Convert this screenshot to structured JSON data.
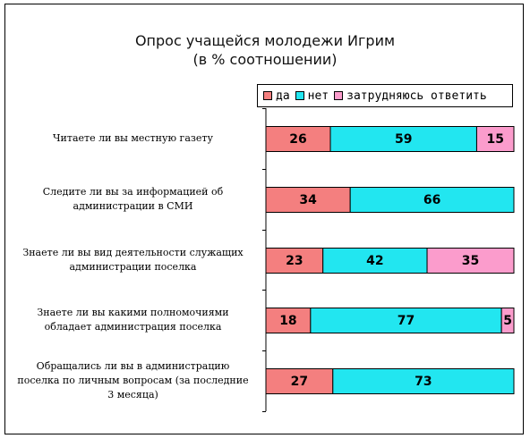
{
  "chart_data": {
    "type": "bar",
    "stacked": true,
    "orientation": "horizontal",
    "title": "Опрос учащейся молодежи Игрим",
    "subtitle": "(в % соотношении)",
    "categories": [
      "Читаете ли вы местную газету",
      "Следите ли вы за информацией об администрации в СМИ",
      "Знаете ли вы вид деятельности служащих администрации поселка",
      "Знаете ли вы какими полномочиями обладает администрация поселка",
      "Обращались ли вы в администрацию поселка по личным вопросам (за последние 3 месяца)"
    ],
    "category_lines": [
      [
        "Читаете ли вы местную газету"
      ],
      [
        "Следите ли вы за информацией об",
        "администрации в СМИ"
      ],
      [
        "Знаете ли вы вид деятельности служащих",
        "администрации поселка"
      ],
      [
        "Знаете ли вы какими полномочиями",
        "обладает администрация поселка"
      ],
      [
        "Обращались ли вы в администрацию",
        "поселка по личным вопросам (за последние",
        "3 месяца)"
      ]
    ],
    "series": [
      {
        "name": "да",
        "color": "#f47f7f",
        "values": [
          26,
          34,
          23,
          18,
          27
        ]
      },
      {
        "name": "нет",
        "color": "#22e6f0",
        "values": [
          59,
          66,
          42,
          77,
          73
        ]
      },
      {
        "name": "затрудняюсь ответить",
        "color": "#fb9ccc",
        "values": [
          15,
          0,
          35,
          5,
          0
        ]
      }
    ],
    "xlim": [
      0,
      100
    ],
    "legend_position": "top-right",
    "grid": false
  }
}
